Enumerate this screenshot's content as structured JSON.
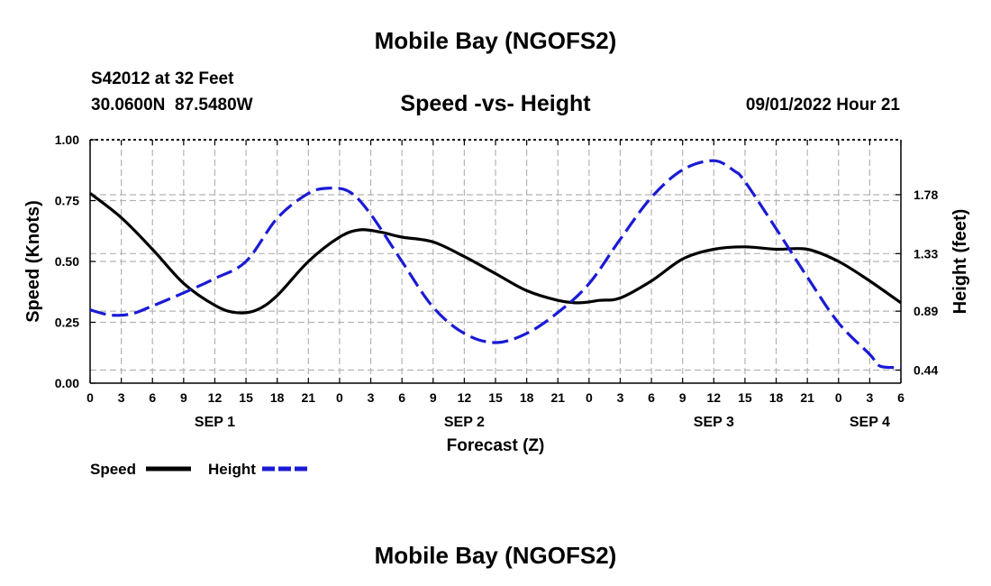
{
  "page": {
    "top_title": "Mobile Bay (NGOFS2)",
    "bottom_title": "Mobile Bay (NGOFS2)"
  },
  "header": {
    "station_line1": "S42012 at 32 Feet",
    "station_line2": "30.0600N  87.5480W",
    "chart_title": "Speed -vs- Height",
    "timestamp": "09/01/2022 Hour 21"
  },
  "colors": {
    "speed": "#000000",
    "height": "#1a1ad6",
    "grid": "#b4b4b4"
  },
  "chart_data": {
    "type": "line",
    "title": "Speed -vs- Height",
    "xlabel": "Forecast (Z)",
    "ylabel": "Speed (Knots)",
    "y2label": "Height (feet)",
    "x_tick_labels": [
      "0",
      "3",
      "6",
      "9",
      "12",
      "15",
      "18",
      "21",
      "0",
      "3",
      "6",
      "9",
      "12",
      "15",
      "18",
      "21",
      "0",
      "3",
      "6",
      "9",
      "12",
      "15",
      "18",
      "21",
      "0",
      "3",
      "6"
    ],
    "day_labels": [
      {
        "label": "SEP 1",
        "x": 12
      },
      {
        "label": "SEP 2",
        "x": 36
      },
      {
        "label": "SEP 3",
        "x": 60
      },
      {
        "label": "SEP 4",
        "x": 75
      }
    ],
    "xlim": [
      0,
      78
    ],
    "ylim": [
      0,
      1
    ],
    "y_ticks": [
      "0.00",
      "0.25",
      "0.50",
      "0.75",
      "1.00"
    ],
    "y_tick_values": [
      0,
      0.25,
      0.5,
      0.75,
      1.0
    ],
    "y2lim": [
      0.34,
      2.2
    ],
    "y2_ticks": [
      "0.44",
      "0.89",
      "1.33",
      "1.78"
    ],
    "y2_tick_values": [
      0.44,
      0.89,
      1.33,
      1.78
    ],
    "series": [
      {
        "name": "Speed",
        "axis": "left",
        "style": "solid",
        "x": [
          0,
          3,
          6,
          9,
          12,
          14,
          16,
          18,
          21,
          24,
          26,
          28,
          30,
          33,
          36,
          39,
          42,
          45,
          47,
          49,
          51,
          54,
          57,
          60,
          63,
          66,
          69,
          72,
          75,
          78
        ],
        "y": [
          0.78,
          0.68,
          0.55,
          0.41,
          0.32,
          0.29,
          0.3,
          0.36,
          0.5,
          0.6,
          0.63,
          0.62,
          0.6,
          0.58,
          0.52,
          0.45,
          0.38,
          0.34,
          0.33,
          0.34,
          0.35,
          0.42,
          0.51,
          0.55,
          0.56,
          0.55,
          0.55,
          0.5,
          0.42,
          0.33
        ]
      },
      {
        "name": "Height",
        "axis": "right",
        "style": "dashed",
        "x": [
          0,
          2,
          4,
          6,
          9,
          12,
          15,
          18,
          21,
          23,
          25,
          27,
          30,
          33,
          36,
          39,
          42,
          45,
          48,
          51,
          54,
          57,
          60,
          62,
          63,
          66,
          69,
          72,
          75,
          76,
          78
        ],
        "y": [
          0.9,
          0.86,
          0.87,
          0.93,
          1.03,
          1.14,
          1.27,
          1.6,
          1.79,
          1.83,
          1.8,
          1.63,
          1.27,
          0.92,
          0.72,
          0.65,
          0.72,
          0.88,
          1.1,
          1.44,
          1.76,
          1.97,
          2.04,
          1.96,
          1.88,
          1.52,
          1.15,
          0.8,
          0.56,
          0.47,
          0.46
        ]
      }
    ]
  },
  "legend": {
    "speed_label": "Speed",
    "height_label": "Height"
  }
}
